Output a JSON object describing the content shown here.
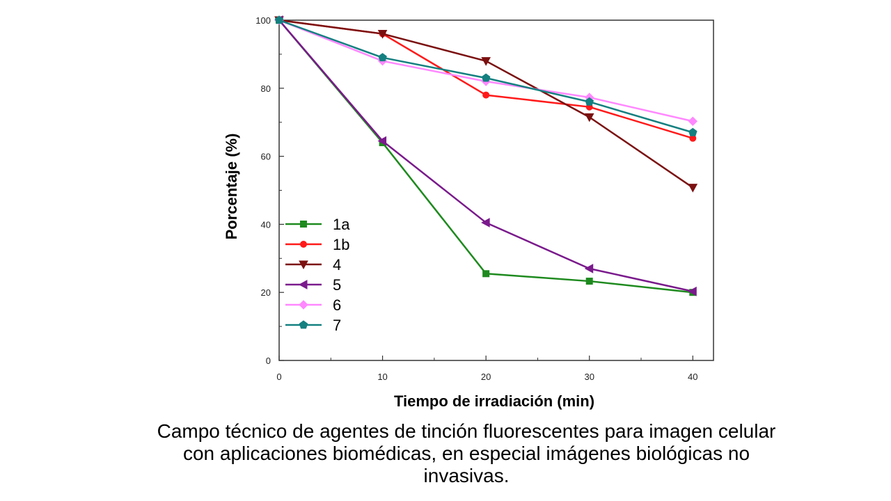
{
  "chart_data": {
    "type": "line",
    "xlabel": "Tiempo de irradiación (min)",
    "ylabel": "Porcentaje (%)",
    "xlim": [
      0,
      42
    ],
    "ylim": [
      0,
      100
    ],
    "xticks": [
      0,
      10,
      20,
      30,
      40
    ],
    "yticks": [
      0,
      20,
      40,
      60,
      80,
      100
    ],
    "legend_position": "lower-left",
    "x": [
      0,
      10,
      20,
      30,
      40
    ],
    "series": [
      {
        "name": "1a",
        "color": "#1e8a1e",
        "marker": "square",
        "values": [
          100,
          64,
          25.5,
          23.3,
          20
        ]
      },
      {
        "name": "1b",
        "color": "#ff1a1a",
        "marker": "circle",
        "values": [
          100,
          96,
          78,
          74.5,
          65.3
        ]
      },
      {
        "name": "4",
        "color": "#7b1010",
        "marker": "triangle-down",
        "values": [
          100,
          96,
          88,
          71.5,
          50.8
        ]
      },
      {
        "name": "5",
        "color": "#7a1a8c",
        "marker": "triangle-left",
        "values": [
          100,
          64.5,
          40.5,
          27,
          20.3
        ]
      },
      {
        "name": "6",
        "color": "#ff88ff",
        "marker": "diamond",
        "values": [
          100,
          88,
          82,
          77.3,
          70.3
        ]
      },
      {
        "name": "7",
        "color": "#148080",
        "marker": "pentagon",
        "values": [
          100,
          89,
          83,
          76,
          67
        ]
      }
    ]
  },
  "caption": {
    "line1": "Campo técnico de agentes de tinción fluorescentes para imagen celular",
    "line2": "con aplicaciones biomédicas, en especial imágenes biológicas no",
    "line3": "invasivas."
  }
}
